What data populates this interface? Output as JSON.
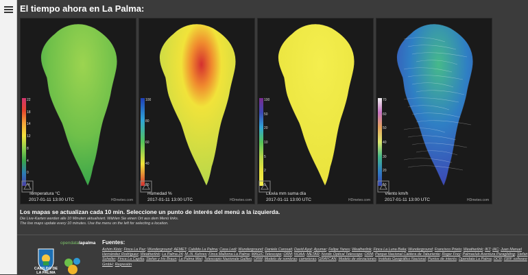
{
  "page": {
    "title": "El tiempo ahora en La Palma:"
  },
  "maps": [
    {
      "label": "Temperatura °C",
      "date": "2017-01-11 13:00 UTC",
      "brand": "HDmeteo.com",
      "scale": [
        "22",
        "18",
        "14",
        "12",
        "8",
        "4",
        "0",
        "-4"
      ],
      "colors": {
        "fill_outer": "#3aa64a",
        "fill_inner": "#9cd450",
        "accent": "#e07a2e"
      }
    },
    {
      "label": "Humedad %",
      "date": "2017-01-11 13:00 UTC",
      "brand": "HDmeteo.com",
      "scale": [
        "100",
        "80",
        "60",
        "40",
        "20"
      ],
      "colors": {
        "fill_outer": "#b7d74a",
        "fill_inner": "#f1e33a",
        "accent": "#d42f2f"
      }
    },
    {
      "label": "Lluvia mm suma día",
      "date": "2017-01-11 13:00 UTC",
      "brand": "HDmeteo.com",
      "scale": [
        "100",
        "50",
        "20",
        "10",
        "5",
        "2",
        "1"
      ],
      "colors": {
        "fill_outer": "#e9e33d",
        "fill_inner": "#f4ee4e",
        "accent": "#e9e33d"
      }
    },
    {
      "label": "Viento km/h",
      "date": "2017-01-11 13:00 UTC",
      "brand": "HDmeteo.com",
      "scale": [
        "70",
        "60",
        "50",
        "40",
        "30",
        "20",
        "10"
      ],
      "colors": {
        "fill_outer": "#3c48b4",
        "fill_inner": "#46b98a",
        "accent": "#dfe86e"
      }
    }
  ],
  "desc": {
    "lead": "Los mapas se actualizan cada 10 min. Seleccione un punto de interés del menú a la izquierda.",
    "note_de": "Die Live-Karten werden alle 10 Minuten aktualisiert. Wählen Sie einen Ort aus dem Menü links.",
    "note_en": "The live maps update every 10 minutes. Use the menu on the left for selecting a location."
  },
  "footer": {
    "cabildo_line1": "CABILDO DE",
    "cabildo_line2": "LA PALMA",
    "odlp_pre": "opendata",
    "odlp_post": "lapalma",
    "fuentes_title": "Fuentes:",
    "sources": [
      "Achim Klotz",
      "Finca La Paz",
      "Wunderground",
      "AEMET",
      "Cabildo La Palma",
      "Casa Ledi",
      "Wunderground",
      "Daniele Carosati",
      "David Ayut",
      "Ayumar",
      "Felipe Yanes",
      "Weatherlink",
      "Finca La Luna Baila",
      "Wunderground",
      "Francisco Prieto",
      "Weatherlink",
      "IKT",
      "IAC",
      "Juan Manuel Hernández Rodríguez",
      "Weatherlink",
      "La Palma 24",
      "M.-N. Kehres",
      "Finca Mallorna La Palma",
      "MAGIC Telescope",
      "ORM",
      "NOAA",
      "METAR",
      "Nordic Optical Telescope",
      "ORM",
      "Parque Nacional Caldera de Taburiente",
      "Roger Frey",
      "Palmaclub Aventura Paragliding",
      "Stefan Scheller",
      "Finca La Capilla",
      "Stefan y Iris Braun",
      "La Palma Miel",
      "Telescopio Nazionale Galileo",
      "ORM",
      "Modelo de sombras",
      "cameteras",
      "GRAFCAN",
      "Modelo de elevaciones",
      "Instituto Geográfico Nacional",
      "Puntos de interés",
      "Opendata La Palma",
      "OCR",
      "ISRF software GmbH",
      "Regresión"
    ]
  }
}
